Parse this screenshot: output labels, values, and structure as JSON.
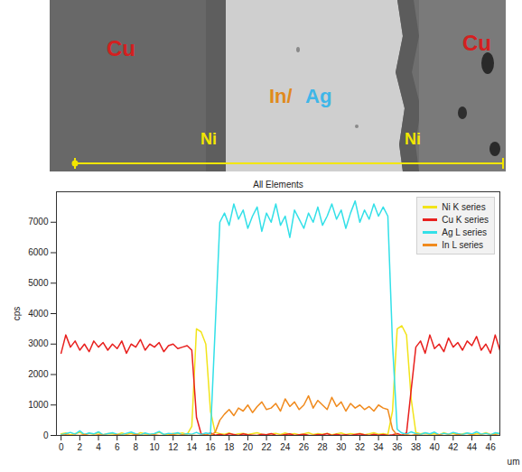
{
  "image": {
    "labels": [
      {
        "text": "Cu",
        "color": "#d42020"
      },
      {
        "text": "In/",
        "color": "#e08a1c"
      },
      {
        "text": "Ag",
        "color": "#3fb6e8"
      },
      {
        "text": "Ni",
        "color": "#f2e600"
      },
      {
        "text": "Ni",
        "color": "#f2e600"
      },
      {
        "text": "Cu",
        "color": "#d42020"
      }
    ]
  },
  "chart_data": {
    "type": "line",
    "title": "All Elements",
    "x_label": "um",
    "y_label": "cps",
    "x": [
      0,
      0.5,
      1,
      1.5,
      2,
      2.5,
      3,
      3.5,
      4,
      4.5,
      5,
      5.5,
      6,
      6.5,
      7,
      7.5,
      8,
      8.5,
      9,
      9.5,
      10,
      10.5,
      11,
      11.5,
      12,
      12.5,
      13,
      13.5,
      14,
      14.5,
      15,
      15.5,
      16,
      16.5,
      17,
      17.5,
      18,
      18.5,
      19,
      19.5,
      20,
      20.5,
      21,
      21.5,
      22,
      22.5,
      23,
      23.5,
      24,
      24.5,
      25,
      25.5,
      26,
      26.5,
      27,
      27.5,
      28,
      28.5,
      29,
      29.5,
      30,
      30.5,
      31,
      31.5,
      32,
      32.5,
      33,
      33.5,
      34,
      34.5,
      35,
      35.5,
      36,
      36.5,
      37,
      37.5,
      38,
      38.5,
      39,
      39.5,
      40,
      40.5,
      41,
      41.5,
      42,
      42.5,
      43,
      43.5,
      44,
      44.5,
      45,
      45.5,
      46,
      46.5,
      47
    ],
    "series": [
      {
        "name": "Ni K series",
        "color": "#f2e41a",
        "values": [
          50,
          80,
          20,
          60,
          100,
          30,
          70,
          40,
          90,
          20,
          60,
          50,
          30,
          80,
          40,
          70,
          20,
          90,
          50,
          30,
          60,
          100,
          40,
          20,
          70,
          50,
          80,
          30,
          300,
          3500,
          3400,
          3000,
          800,
          100,
          60,
          40,
          80,
          20,
          50,
          70,
          30,
          60,
          90,
          40,
          20,
          50,
          70,
          30,
          80,
          40,
          60,
          20,
          50,
          90,
          30,
          60,
          40,
          70,
          20,
          50,
          80,
          30,
          60,
          40,
          70,
          20,
          50,
          90,
          40,
          60,
          30,
          800,
          3500,
          3600,
          3300,
          1200,
          100,
          50,
          80,
          30,
          60,
          20,
          90,
          40,
          70,
          30,
          50,
          80,
          20,
          60,
          40,
          90,
          30,
          50,
          70
        ]
      },
      {
        "name": "Cu K series",
        "color": "#e8201e",
        "values": [
          2700,
          3300,
          2900,
          3100,
          2800,
          3000,
          2750,
          3100,
          2900,
          3050,
          2800,
          3000,
          2850,
          3100,
          2700,
          3000,
          2900,
          3150,
          2800,
          3000,
          2900,
          3050,
          2750,
          2950,
          3000,
          2850,
          2900,
          2950,
          2800,
          600,
          50,
          20,
          80,
          10,
          40,
          0,
          60,
          30,
          0,
          50,
          20,
          10,
          0,
          40,
          20,
          60,
          10,
          0,
          30,
          50,
          0,
          20,
          40,
          10,
          0,
          30,
          20,
          60,
          0,
          40,
          10,
          20,
          0,
          30,
          50,
          20,
          0,
          40,
          10,
          30,
          0,
          20,
          60,
          10,
          80,
          1500,
          2900,
          3100,
          2700,
          3300,
          2850,
          3000,
          2750,
          3200,
          2900,
          3050,
          2800,
          3100,
          2950,
          3250,
          2800,
          3000,
          2700,
          3300,
          2800
        ]
      },
      {
        "name": "Ag L series",
        "color": "#33e0e8",
        "values": [
          20,
          60,
          100,
          40,
          150,
          30,
          80,
          50,
          120,
          20,
          60,
          90,
          40,
          30,
          70,
          110,
          50,
          20,
          80,
          40,
          60,
          130,
          30,
          70,
          50,
          90,
          20,
          60,
          40,
          100,
          30,
          80,
          50,
          3500,
          7000,
          7300,
          6900,
          7600,
          7100,
          7400,
          6800,
          7200,
          7500,
          6700,
          7300,
          7000,
          7600,
          6900,
          7200,
          6500,
          7400,
          7100,
          6800,
          7300,
          7000,
          7500,
          6900,
          7200,
          7600,
          7100,
          7400,
          6800,
          7300,
          7700,
          7000,
          7400,
          7100,
          7600,
          7200,
          7500,
          7200,
          3000,
          200,
          80,
          40,
          120,
          60,
          30,
          90,
          50,
          110,
          20,
          70,
          40,
          100,
          60,
          30,
          80,
          50,
          120,
          40,
          70,
          20,
          90,
          60
        ]
      },
      {
        "name": "In L series",
        "color": "#f08a1d",
        "values": [
          0,
          20,
          0,
          10,
          0,
          30,
          0,
          0,
          20,
          10,
          0,
          0,
          20,
          0,
          10,
          0,
          30,
          0,
          10,
          0,
          20,
          0,
          0,
          10,
          30,
          0,
          20,
          0,
          10,
          0,
          0,
          20,
          0,
          100,
          500,
          700,
          850,
          650,
          900,
          800,
          1000,
          750,
          950,
          1100,
          850,
          900,
          1050,
          800,
          1200,
          950,
          1100,
          850,
          1000,
          1300,
          900,
          1150,
          1000,
          850,
          1250,
          950,
          1100,
          800,
          1050,
          900,
          1000,
          850,
          950,
          800,
          1000,
          900,
          850,
          200,
          10,
          0,
          20,
          0,
          30,
          0,
          10,
          0,
          0,
          20,
          0,
          10,
          0,
          30,
          0,
          0,
          20,
          0,
          10,
          0,
          0,
          20,
          0
        ]
      }
    ],
    "xlim": [
      -0.5,
      47
    ],
    "xticks": [
      0,
      2,
      4,
      6,
      8,
      10,
      12,
      14,
      16,
      18,
      20,
      22,
      24,
      26,
      28,
      30,
      32,
      34,
      36,
      38,
      40,
      42,
      44,
      46
    ],
    "ylim": [
      0,
      8000
    ],
    "yticks": [
      0,
      1000,
      2000,
      3000,
      4000,
      5000,
      6000,
      7000
    ],
    "legend": "top-right",
    "grid": false
  }
}
